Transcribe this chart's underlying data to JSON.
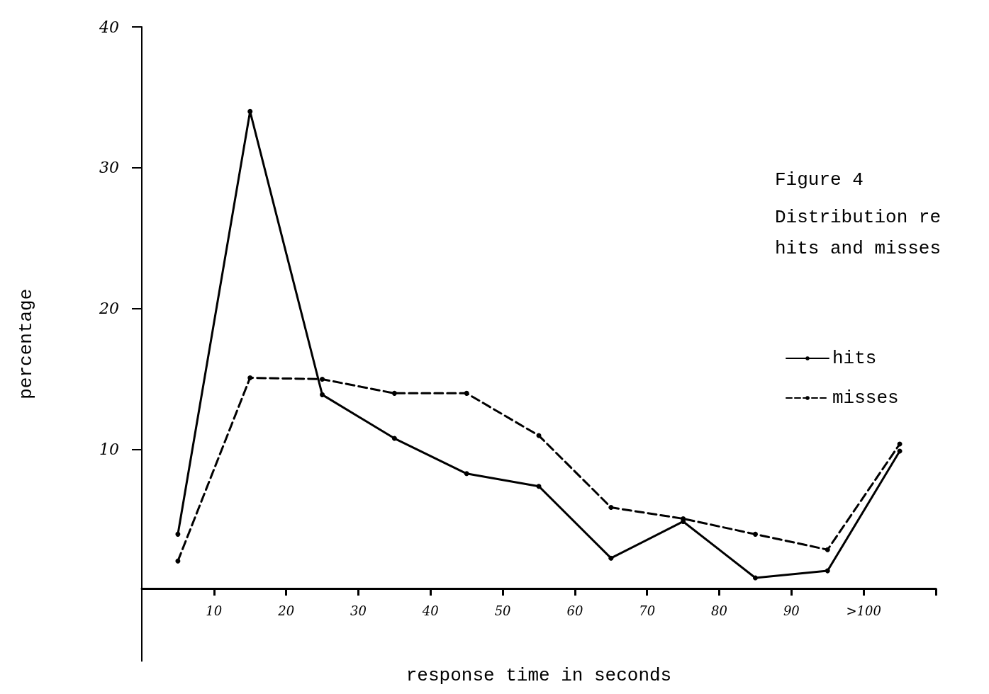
{
  "chart_data": {
    "type": "line",
    "title": "Figure 4",
    "subtitle": "Distribution re\nhits and misses",
    "xlabel": "response time in seconds",
    "ylabel": "percentage",
    "x": [
      5,
      15,
      25,
      35,
      45,
      55,
      65,
      75,
      85,
      95,
      105
    ],
    "series": [
      {
        "name": "hits",
        "color": "#000000",
        "line_style": "solid",
        "values": [
          4,
          34,
          13.9,
          10.8,
          8.3,
          7.4,
          2.3,
          4.9,
          0.9,
          1.4,
          9.9
        ]
      },
      {
        "name": "misses",
        "color": "#000000",
        "line_style": "dashed",
        "values": [
          2.1,
          15.1,
          15,
          14,
          14,
          11,
          5.9,
          5.1,
          4,
          2.9,
          10.4
        ]
      }
    ],
    "xlim": [
      0,
      110
    ],
    "xticks": [
      10,
      20,
      30,
      40,
      50,
      60,
      70,
      80,
      90,
      {
        "value": 100,
        "label": ">100"
      },
      {
        "value": 110,
        "label": null
      }
    ],
    "ylim": [
      -5,
      40
    ],
    "yticks": [
      10,
      20,
      30,
      40
    ],
    "grid": false,
    "legend": "right",
    "marker": "circle"
  }
}
